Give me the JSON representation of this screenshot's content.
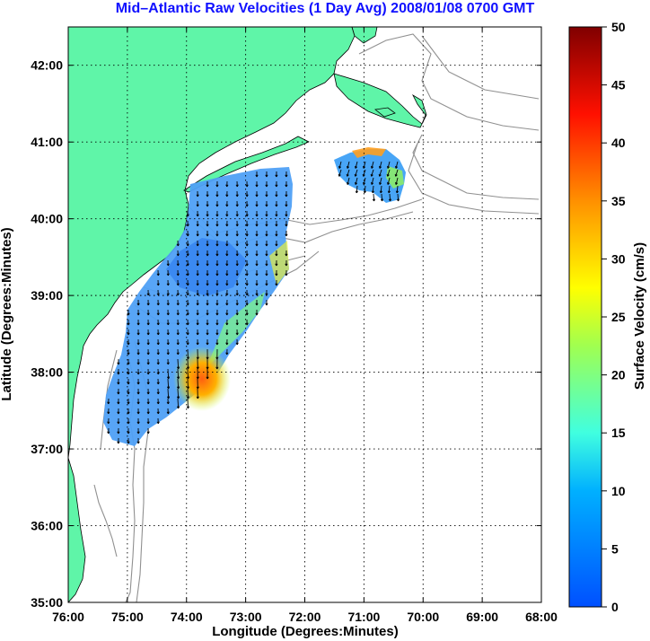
{
  "title": "Mid–Atlantic Raw Velocities (1 Day Avg) 2008/01/08 0700 GMT",
  "axes": {
    "xlabel": "Longitude (Degrees:Minutes)",
    "ylabel": "Latitude (Degrees:Minutes)",
    "x_ticks": [
      "76:00",
      "75:00",
      "74:00",
      "73:00",
      "72:00",
      "71:00",
      "70:00",
      "69:00",
      "68:00"
    ],
    "y_ticks": [
      "35:00",
      "36:00",
      "37:00",
      "38:00",
      "39:00",
      "40:00",
      "41:00",
      "42:00"
    ],
    "xlim": [
      -76,
      -68
    ],
    "ylim": [
      35,
      42.5
    ],
    "grid": true
  },
  "colorbar": {
    "label": "Surface Velocity (cm/s)",
    "min": 0,
    "max": 50,
    "ticks": [
      "0",
      "5",
      "10",
      "15",
      "20",
      "25",
      "30",
      "35",
      "40",
      "45",
      "50"
    ]
  },
  "colors": {
    "land": "#5ff5a8",
    "ocean": "#ffffff",
    "title": "#1010ff",
    "contour": "#909090"
  }
}
